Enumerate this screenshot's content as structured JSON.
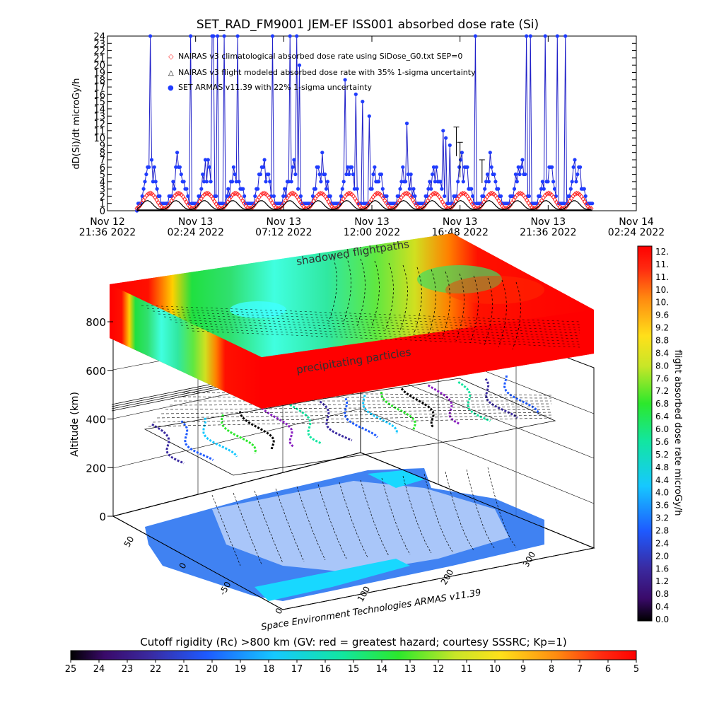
{
  "title": "SET_RAD_FM9001  JEM-EF ISS001 absorbed dose rate (Si)",
  "colors": {
    "naira_climatological": "#ff2a2a",
    "naira_flight": "#000000",
    "armas": "#1f3cff",
    "armas_line": "#2020c8"
  },
  "chart_data": [
    {
      "type": "line",
      "title": "SET_RAD_FM9001  JEM-EF ISS001 absorbed dose rate (Si)",
      "ylabel": "dD(Si)/dt microGy/h",
      "xlabel": "",
      "ylim": [
        0,
        24
      ],
      "y_ticks": [
        "0",
        "1",
        "2",
        "3",
        "4",
        "5",
        "6",
        "7",
        "8",
        "9",
        "10",
        "11",
        "12",
        "13",
        "14",
        "15",
        "16",
        "17",
        "18",
        "19",
        "20",
        "21",
        "22",
        "23",
        "24"
      ],
      "x_range_hours": [
        0,
        28.8
      ],
      "x_ticks": [
        {
          "hours": 0.0,
          "line1": "Nov 12",
          "line2": "21:36 2022"
        },
        {
          "hours": 4.8,
          "line1": "Nov 13",
          "line2": "02:24 2022"
        },
        {
          "hours": 9.6,
          "line1": "Nov 13",
          "line2": "07:12 2022"
        },
        {
          "hours": 14.4,
          "line1": "Nov 13",
          "line2": "12:00 2022"
        },
        {
          "hours": 19.2,
          "line1": "Nov 13",
          "line2": "16:48 2022"
        },
        {
          "hours": 24.0,
          "line1": "Nov 13",
          "line2": "21:36 2022"
        },
        {
          "hours": 28.8,
          "line1": "Nov 14",
          "line2": "02:24 2022"
        }
      ],
      "legend": [
        {
          "symbol": "◇",
          "label": "NAIRAS v3 climatological absorbed dose rate using SiDose_G0.txt SEP=0"
        },
        {
          "symbol": "△",
          "label": "NAIRAS v3 flight modeled absorbed dose rate with 35% 1-sigma uncertainty"
        },
        {
          "symbol": "●",
          "label": "SET ARMAS v11.39 with 22% 1-sigma uncertainty"
        }
      ],
      "series": [
        {
          "name": "SET ARMAS v11.39 with 22% 1-sigma uncertainty",
          "x_start_hours": 1.6,
          "x_end_hours": 26.4,
          "n_points": 340,
          "pass_period_hours": 1.55,
          "background_range": [
            1,
            8
          ],
          "spike_peaks": [
            24,
            24,
            24,
            24,
            24,
            24,
            24,
            24,
            24,
            24,
            20,
            18,
            16,
            15,
            13,
            12,
            11,
            10,
            9,
            8
          ]
        },
        {
          "name": "NAIRAS v3 climatological absorbed dose rate using SiDose_G0.txt SEP=0",
          "period_hours": 1.55,
          "min": 0.3,
          "max": 2.4
        },
        {
          "name": "NAIRAS v3 flight modeled absorbed dose rate with 35% 1-sigma uncertainty",
          "period_hours": 1.55,
          "min": 0.2,
          "max": 1.4
        }
      ]
    },
    {
      "type": "heatmap",
      "title": "",
      "zlabel": "Altitude (km)",
      "z_ticks": [
        0,
        200,
        400,
        600,
        800
      ],
      "lat_ticks": [
        50,
        0,
        -50
      ],
      "lon_ticks": [
        0,
        100,
        200,
        300
      ],
      "annotations": [
        "shadowed flightpaths",
        "precipitating particles"
      ],
      "credit": "Space Environment Technologies ARMAS v11.39"
    },
    {
      "type": "heatmap",
      "title": "flight absorbed dose rate microGy/h",
      "colorbar_ticks": [
        "12.",
        "11.",
        "11.",
        "10.",
        "10.",
        "9.6",
        "9.2",
        "8.8",
        "8.4",
        "8.0",
        "7.6",
        "7.2",
        "6.8",
        "6.4",
        "6.0",
        "5.6",
        "5.2",
        "4.8",
        "4.4",
        "4.0",
        "3.6",
        "3.2",
        "2.8",
        "2.4",
        "2.0",
        "1.6",
        "1.2",
        "0.8",
        "0.4",
        "0.0"
      ]
    },
    {
      "type": "heatmap",
      "title": "Cutoff rigidity (Rc) >800 km (GV: red = greatest hazard; courtesy SSSRC; Kp=1)",
      "colorbar_ticks": [
        "25",
        "24",
        "23",
        "22",
        "21",
        "20",
        "19",
        "18",
        "17",
        "16",
        "15",
        "14",
        "13",
        "12",
        "11",
        "10",
        "9",
        "8",
        "7",
        "6",
        "5"
      ]
    }
  ]
}
